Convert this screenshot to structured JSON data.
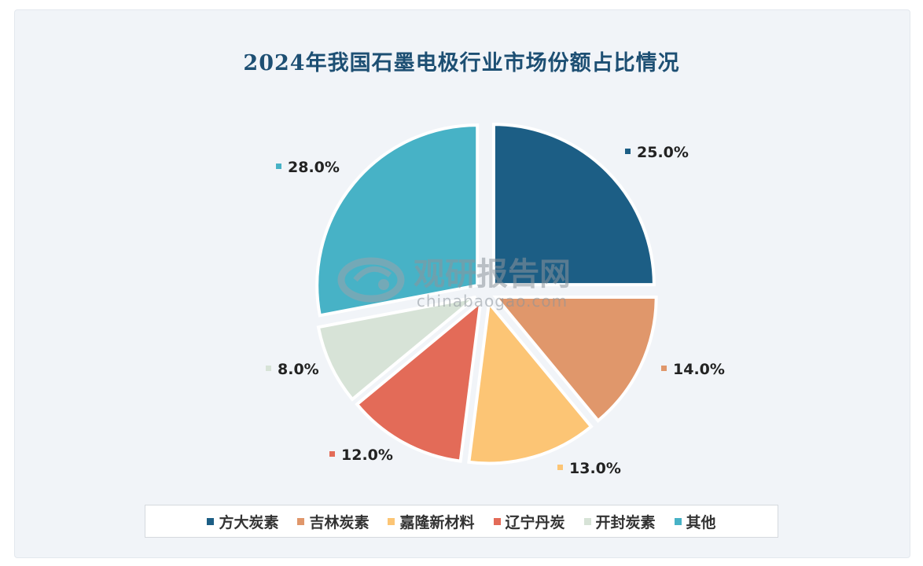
{
  "chart_data": {
    "type": "pie",
    "title": "2024年我国石墨电极行业市场份额占比情况",
    "slices": [
      {
        "name": "方大炭素",
        "value": 25.0,
        "label": "25.0%",
        "color": "#1c5e85"
      },
      {
        "name": "吉林炭素",
        "value": 14.0,
        "label": "14.0%",
        "color": "#e0976b"
      },
      {
        "name": "嘉隆新材料",
        "value": 13.0,
        "label": "13.0%",
        "color": "#fcc575"
      },
      {
        "name": "辽宁丹炭",
        "value": 12.0,
        "label": "12.0%",
        "color": "#e36b58"
      },
      {
        "name": "开封炭素",
        "value": 8.0,
        "label": "8.0%",
        "color": "#d7e3d7"
      },
      {
        "name": "其他",
        "value": 28.0,
        "label": "28.0%",
        "color": "#47b2c6"
      }
    ],
    "legend_position": "bottom"
  },
  "watermark": {
    "brand": "观研报告网",
    "url": "chinabaogao.com"
  }
}
